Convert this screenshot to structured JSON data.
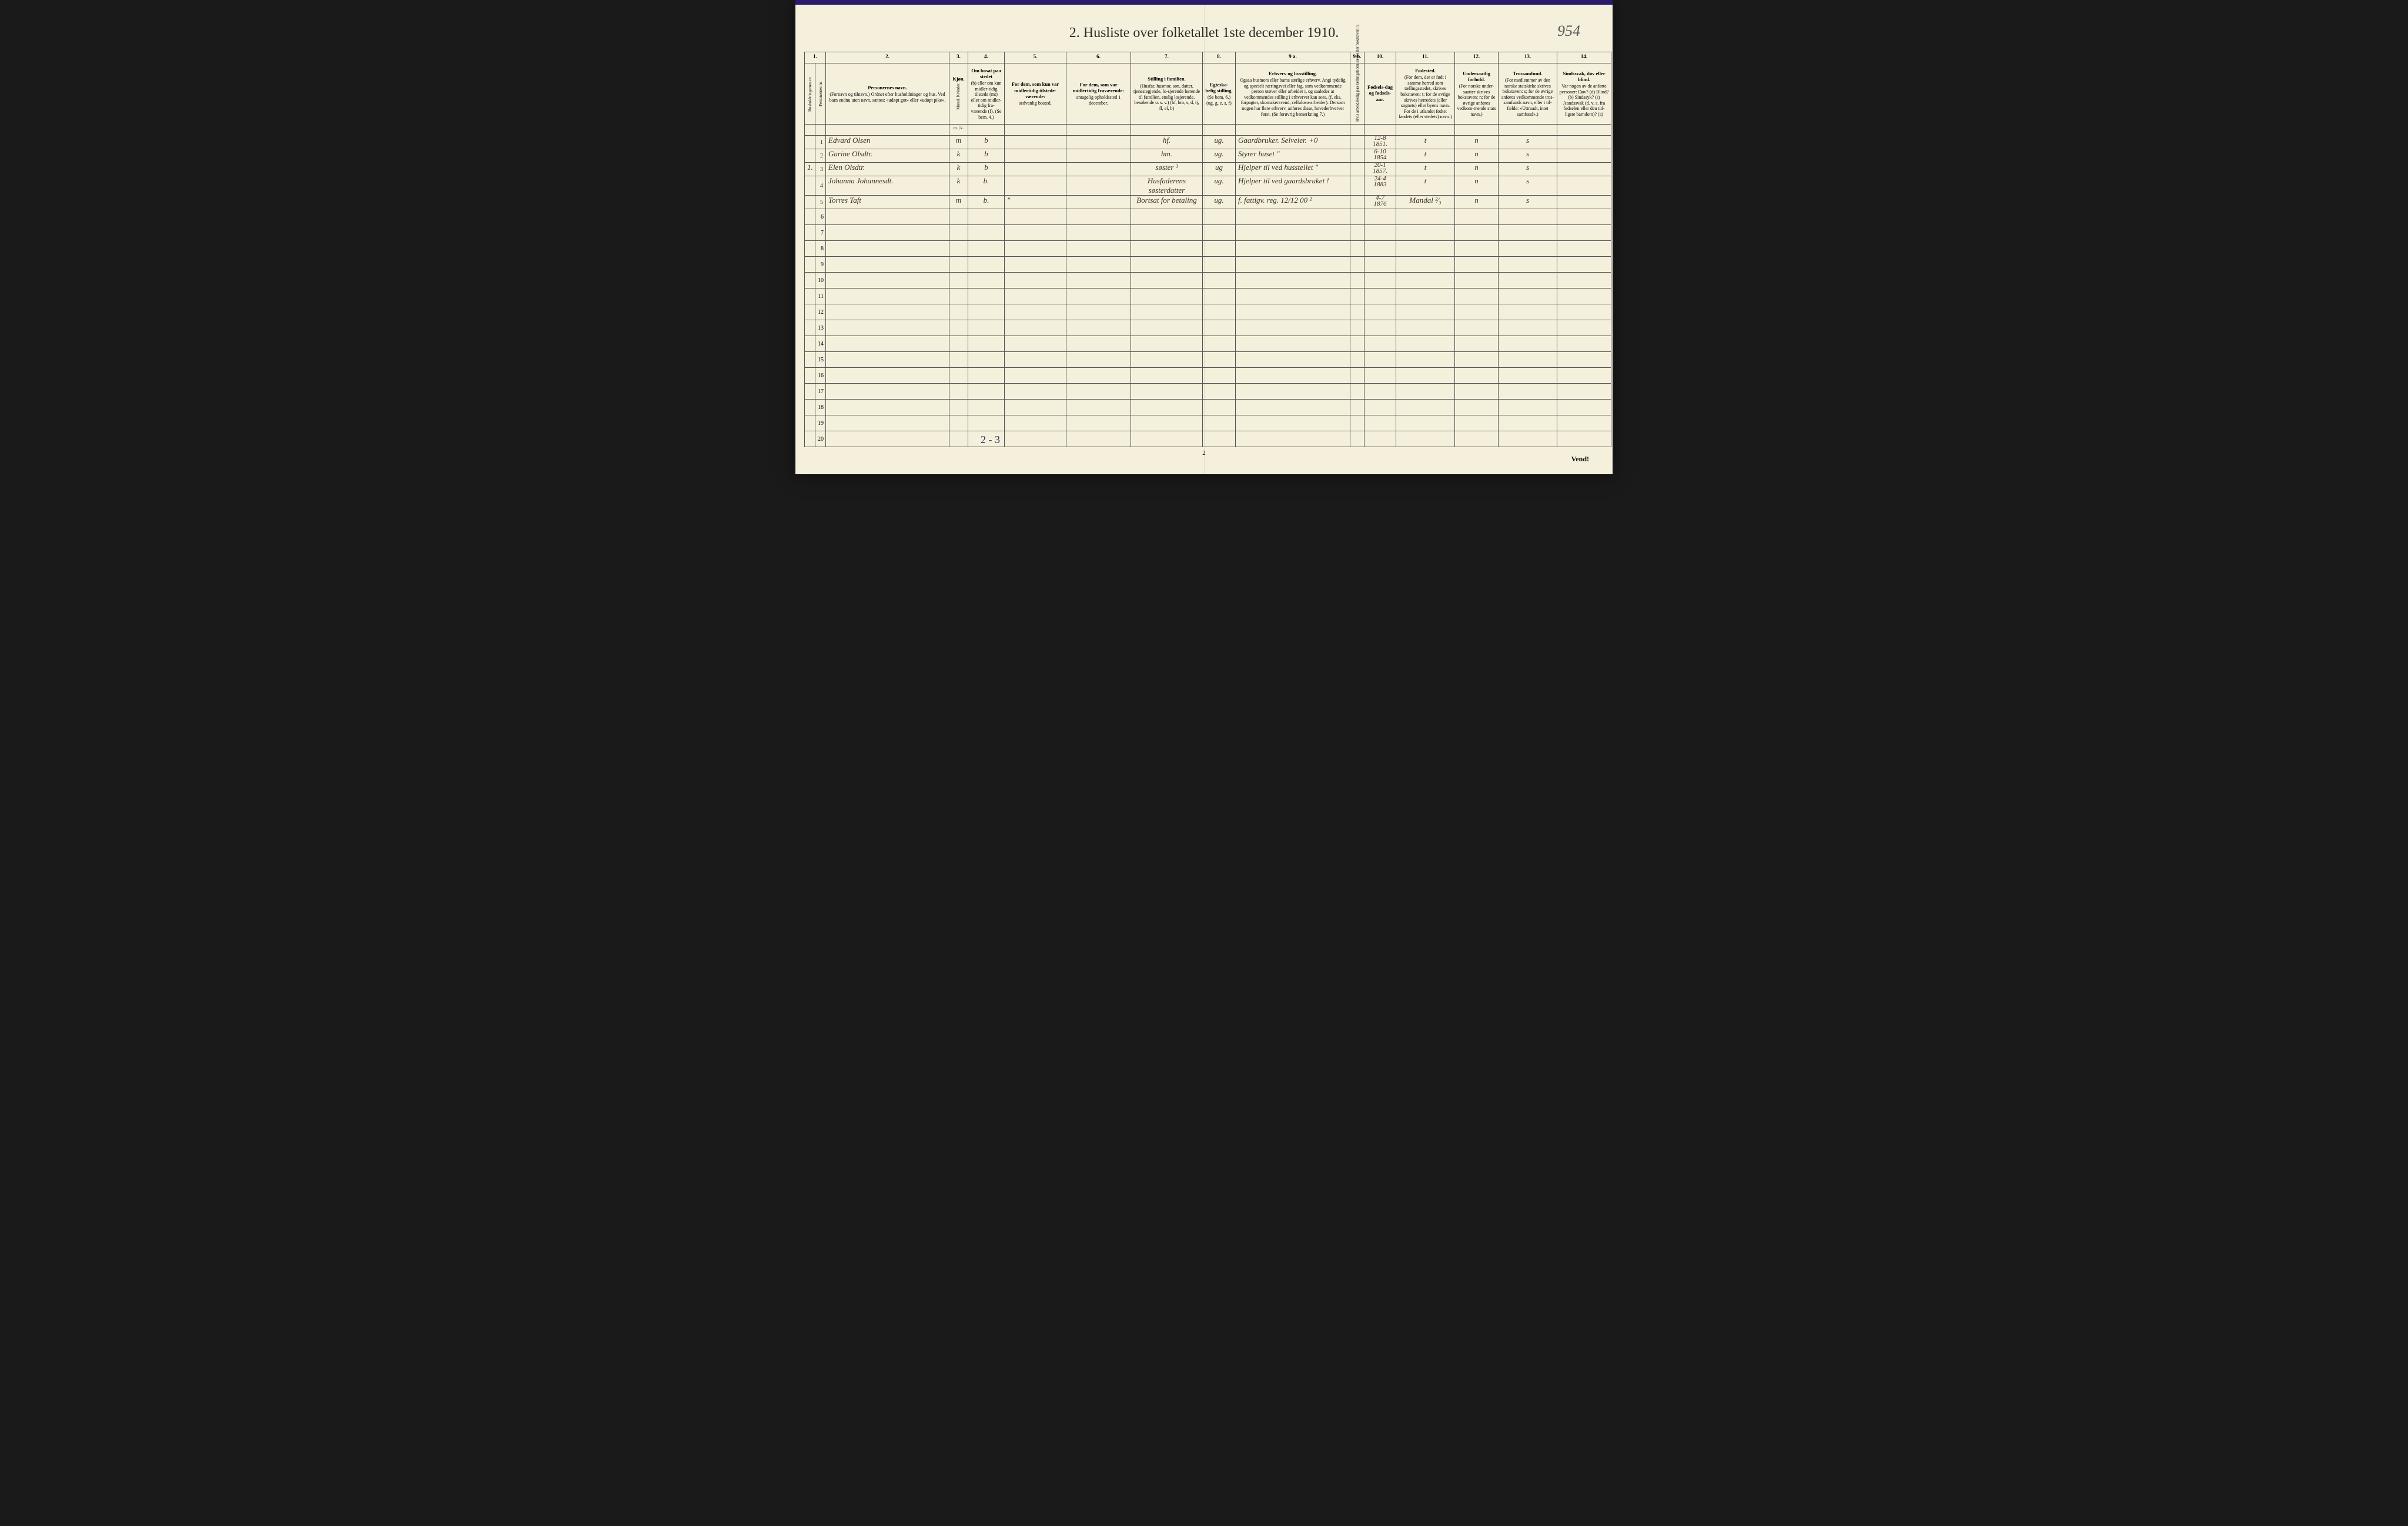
{
  "pageNumHandwritten": "954",
  "title": "2.  Husliste over folketallet 1ste december 1910.",
  "columnNumbers": [
    "1.",
    "",
    "2.",
    "3.",
    "4.",
    "5.",
    "6.",
    "7.",
    "8.",
    "9 a.",
    "9 b.",
    "10.",
    "11.",
    "12.",
    "13.",
    "14."
  ],
  "headers": {
    "c1a": "Husholdningernes nr.",
    "c1b": "Personernes nr.",
    "c2_title": "Personernes navn.",
    "c2_sub": "(Fornavn og tilnavn.)\nOrdnet efter husholdninger og hus.\nVed barn endnu uten navn, sættes: «udøpt gut»\neller «udøpt pike».",
    "c3_title": "Kjøn.",
    "c3_sub": "Mænd.\nKvinder.",
    "c3_foot": "m. | k.",
    "c4_title": "Om bosat paa stedet",
    "c4_sub": "(b) eller om kun midler-tidig tilstede (mt) eller om midler-tidig fra-værende (f).\n(Se bem. 4.)",
    "c5_title": "For dem, som kun var midlertidig tilstede-værende:",
    "c5_sub": "sedvanlig bosted.",
    "c6_title": "For dem, som var midlertidig fraværende:",
    "c6_sub": "antagelig opholdssted 1 december.",
    "c7_title": "Stilling i familien.",
    "c7_sub": "(Husfar, husmor, søn, datter, tjenestegjende, lo-sjerende hørende til familien, enslig losjerende, besøkende o. s. v.)\n(hf, hm, s, d, tj, fl, el, b)",
    "c8_title": "Egteska-belig stilling.",
    "c8_sub": "(Se bem. 6.)\n(ug, g, e, s, f)",
    "c9a_title": "Erhverv og livsstilling.",
    "c9a_sub": "Ogsaa husmors eller barns særlige erhverv. Angi tydelig og specielt næringsvei eller fag, som vedkommende person utøver eller arbeider i, og saaledes at vedkommendes stilling i erhvervet kan sees, (f. eks. forpagter, skomakersvend, celluloso-arbeider). Dersom nogen har flere erhverv, anføres disse, hovederhvervet først.\n(Se forøvrig bemerkning 7.)",
    "c9b": "Hvis arbeidsledig paa tællingstiden sættes her bokstaven: l.",
    "c10_title": "Fødsels-dag og fødsels-aar.",
    "c11_title": "Fødested.",
    "c11_sub": "(For dem, der er født i samme herred som tællingsstedet, skrives bokstaven: t; for de øvrige skrives herredets (eller sognets) eller byens navn. For de i utlandet fødte: landets (eller stedets) navn.)",
    "c12_title": "Undersaatlig forhold.",
    "c12_sub": "(For norske under-saatter skrives bokstaven: n; for de øvrige anføres vedkom-mende stats navn.)",
    "c13_title": "Trossamfund.",
    "c13_sub": "(For medlemmer av den norske statskirke skrives bokstaven: s; for de øvrige anføres vedkommende tros-samfunds navn, eller i til-fælde: «Uttraadt, intet samfund».)",
    "c14_title": "Sindssvak, døv eller blind.",
    "c14_sub": "Var nogen av de anførte personer:\nDøv? (d)\nBlind? (b)\nSindssyk? (s)\nAandssvak (d. v. s. fra fødselen eller den tid-ligste barndom)? (a)"
  },
  "rows": [
    {
      "hh": "",
      "pn": "1",
      "name": "Edvard Olsen",
      "sex": "m",
      "res": "b",
      "temp": "",
      "away": "",
      "famrel": "hf.",
      "mar": "ug.",
      "occ": "Gaardbruker. Selveier.",
      "occnote": "+0",
      "unemp": "",
      "birth": "12-8\n1851.",
      "place": "t",
      "nat": "n",
      "faith": "s",
      "dis": ""
    },
    {
      "hh": "",
      "pn": "2",
      "name": "Gurine Olsdtr.",
      "sex": "k",
      "res": "b",
      "temp": "",
      "away": "",
      "famrel": "hm.",
      "mar": "ug.",
      "occ": "Styrer huset",
      "occnote": "\"",
      "unemp": "",
      "birth": "6-10\n1854",
      "place": "t",
      "nat": "n",
      "faith": "s",
      "dis": ""
    },
    {
      "hh": "1.",
      "pn": "3",
      "name": "Elen Olsdtr.",
      "sex": "k",
      "res": "b",
      "temp": "",
      "away": "",
      "famrel": "søster ³",
      "mar": "ug",
      "occ": "Hjelper til ved husstellet",
      "occnote": "\"",
      "unemp": "",
      "birth": "20-1\n1857.",
      "place": "t",
      "nat": "n",
      "faith": "s",
      "dis": ""
    },
    {
      "hh": "",
      "pn": "4",
      "name": "Johanna Johannesdt.",
      "sex": "k",
      "res": "b.",
      "temp": "",
      "away": "",
      "famrel": "Husfaderens søsterdatter",
      "mar": "ug.",
      "occ": "Hjelper til ved gaardsbruket",
      "occnote": "!",
      "unemp": "",
      "birth": "24-4\n1883",
      "place": "t",
      "nat": "n",
      "faith": "s",
      "dis": ""
    },
    {
      "hh": "",
      "pn": "5",
      "name": "Torres Taft",
      "sex": "m",
      "res": "b.",
      "temp": "\"",
      "away": "",
      "famrel": "Bortsat for betaling",
      "mar": "ug.",
      "occ": "f. fattigv. reg.  12/12 00",
      "occnote": "²",
      "unemp": "",
      "birth": "4-7\n1876",
      "place": "Mandal  ²⁄₃",
      "nat": "n",
      "faith": "s",
      "dis": ""
    }
  ],
  "emptyRowLabels": [
    "6",
    "7",
    "8",
    "9",
    "10",
    "11",
    "12",
    "13",
    "14",
    "15",
    "16",
    "17",
    "18",
    "19",
    "20"
  ],
  "tally": "2 - 3",
  "bottomPageNum": "2",
  "vend": "Vend!"
}
